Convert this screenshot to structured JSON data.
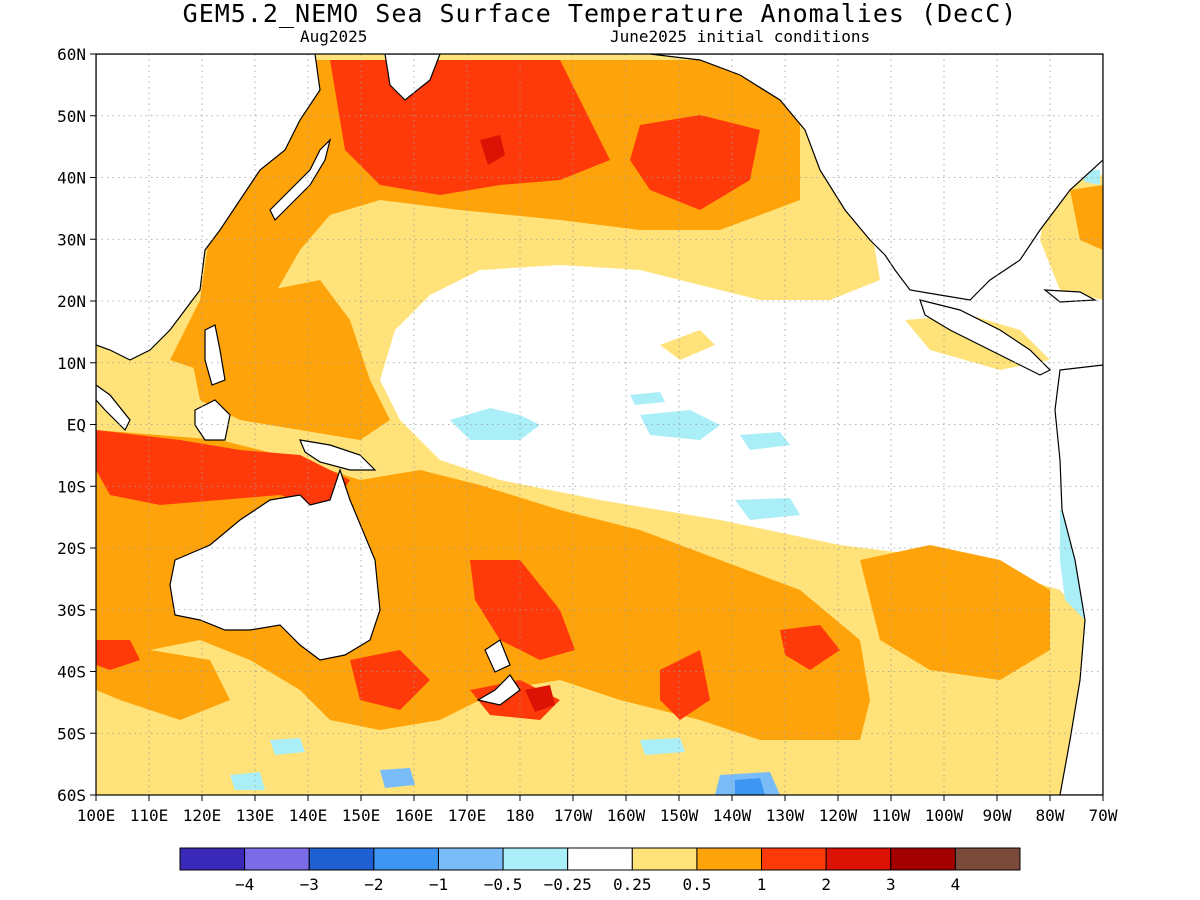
{
  "title": "GEM5.2_NEMO Sea Surface Temperature Anomalies (DecC)",
  "subtitle_left": "Aug2025",
  "subtitle_right": "June2025 initial conditions",
  "map": {
    "lon_range": [
      100,
      290
    ],
    "lat_range": [
      -60,
      60
    ],
    "lat_ticks": [
      "60N",
      "50N",
      "40N",
      "30N",
      "20N",
      "10N",
      "EQ",
      "10S",
      "20S",
      "30S",
      "40S",
      "50S",
      "60S"
    ],
    "lon_ticks": [
      "100E",
      "110E",
      "120E",
      "130E",
      "140E",
      "150E",
      "160E",
      "170E",
      "180",
      "170W",
      "160W",
      "150W",
      "140W",
      "130W",
      "120W",
      "110W",
      "100W",
      "90W",
      "80W",
      "70W"
    ],
    "grid": "dotted"
  },
  "colorbar": {
    "colors": [
      "#3a28b8",
      "#7d6ce8",
      "#1e5fd1",
      "#3d96f2",
      "#79bcf8",
      "#aaeef8",
      "#ffffff",
      "#ffe37a",
      "#ffa30a",
      "#ff3a0a",
      "#dc1205",
      "#a50000",
      "#7a4a3a"
    ],
    "labels": [
      "−4",
      "−3",
      "−2",
      "−1",
      "−0.5",
      "−0.25",
      "0.25",
      "0.5",
      "1",
      "2",
      "3",
      "4"
    ]
  }
}
